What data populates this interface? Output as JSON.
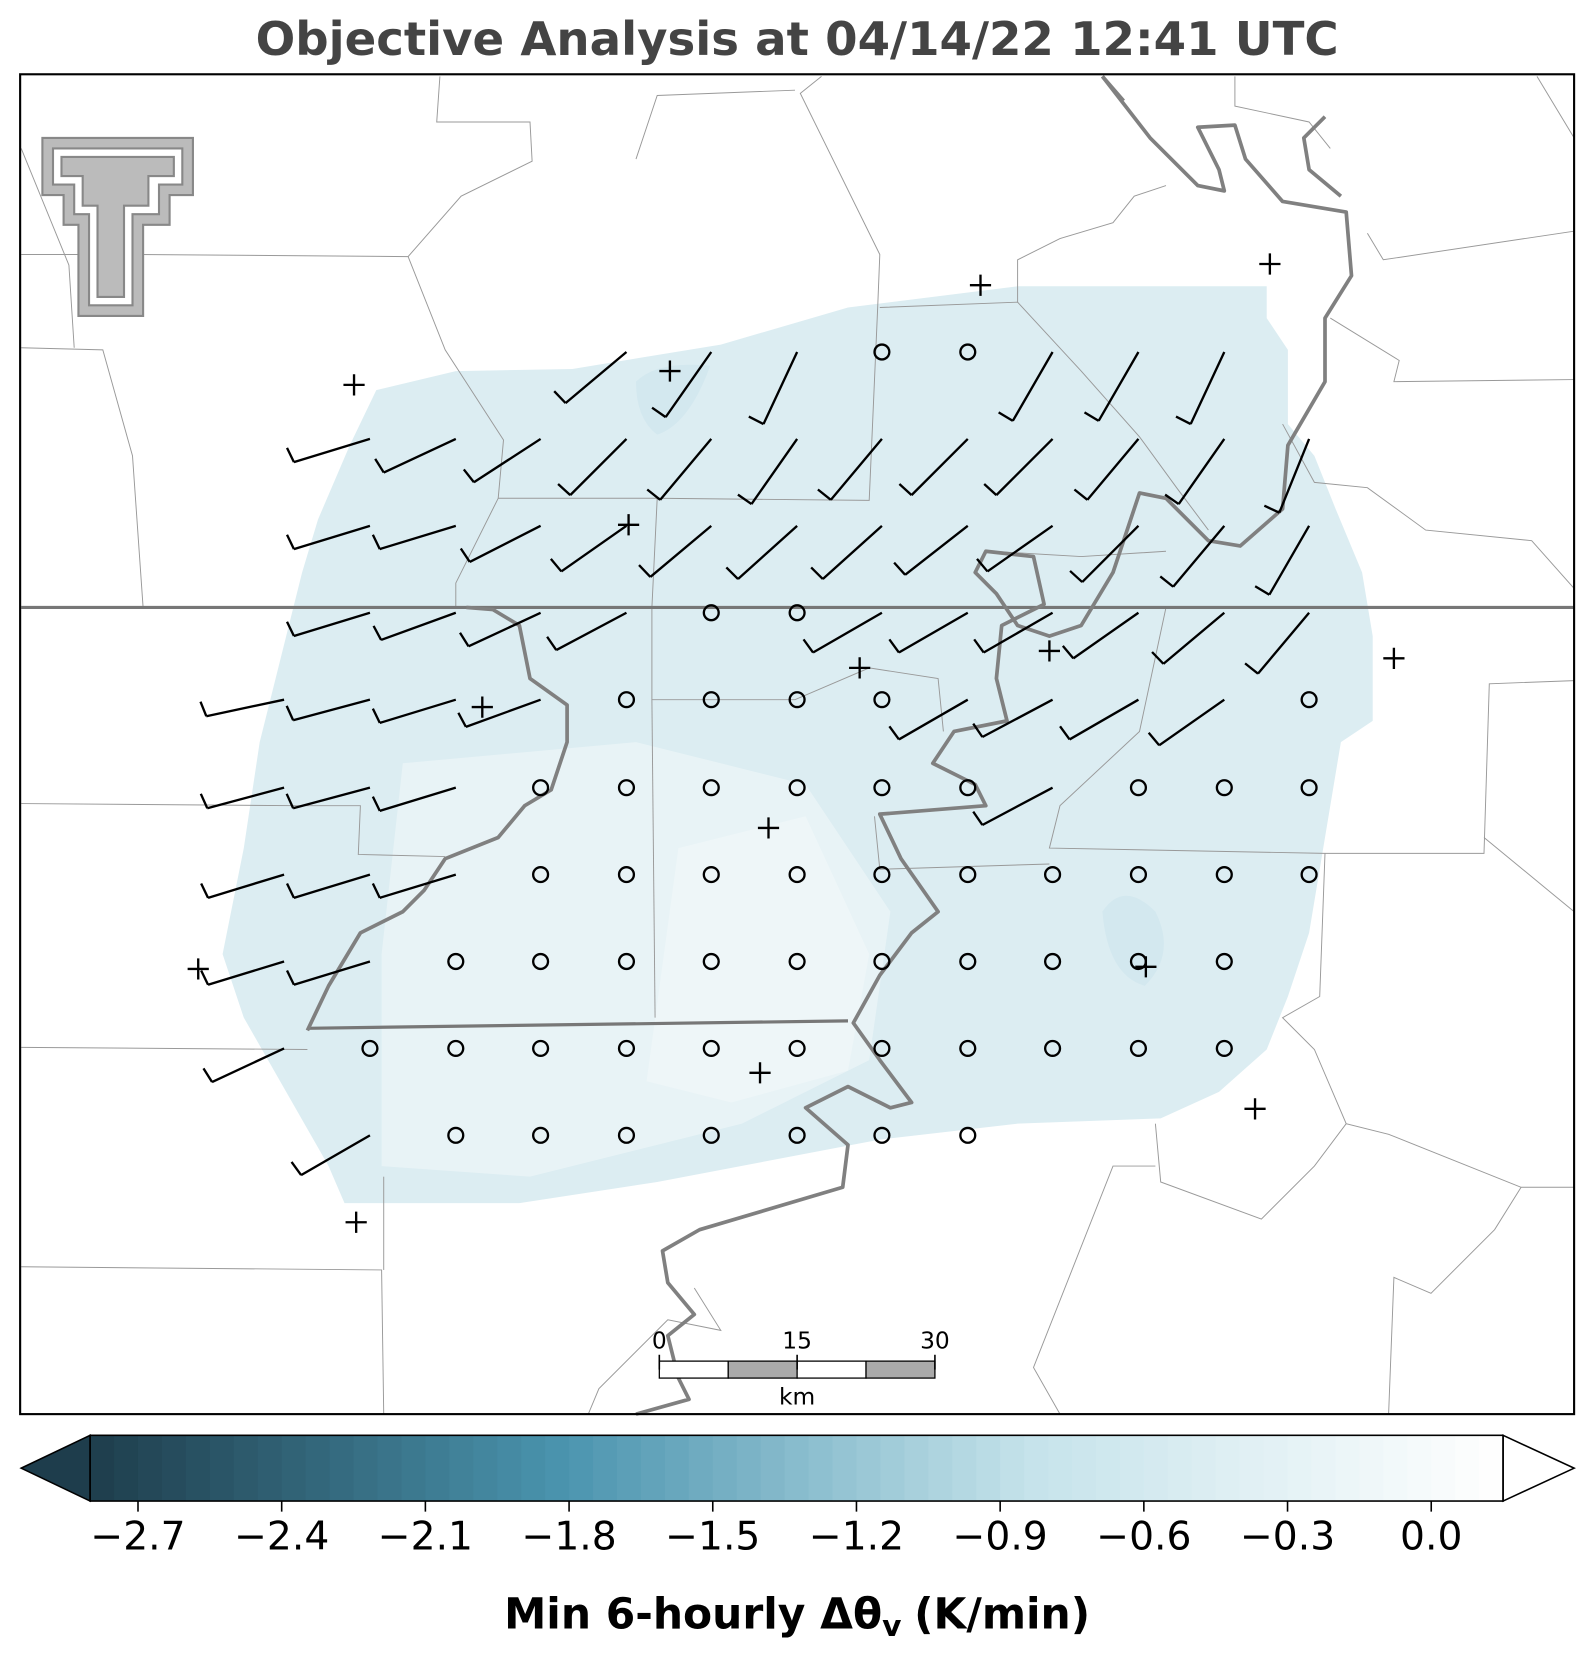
{
  "title": "Objective Analysis at 04/14/22 12:41 UTC",
  "scale_bar": {
    "ticks": [
      0,
      15,
      30
    ],
    "unit": "km"
  },
  "colorbar": {
    "label_parts": [
      "Min 6-hourly Δθ",
      "v",
      "(K/min)"
    ],
    "lim": [
      -2.8,
      0.15
    ],
    "extend": "both",
    "colors": [
      "#1e3d4c",
      "#4a94ae",
      "#c6e3eb",
      "#ffffff"
    ],
    "ticks": [
      {
        "value": -2.7,
        "label": "−2.7"
      },
      {
        "value": -2.4,
        "label": "−2.4"
      },
      {
        "value": -2.1,
        "label": "−2.1"
      },
      {
        "value": -1.8,
        "label": "−1.8"
      },
      {
        "value": -1.5,
        "label": "−1.5"
      },
      {
        "value": -1.2,
        "label": "−1.2"
      },
      {
        "value": -0.9,
        "label": "−0.9"
      },
      {
        "value": -0.6,
        "label": "−0.6"
      },
      {
        "value": -0.3,
        "label": "−0.3"
      },
      {
        "value": 0.0,
        "label": "0.0"
      }
    ]
  }
}
